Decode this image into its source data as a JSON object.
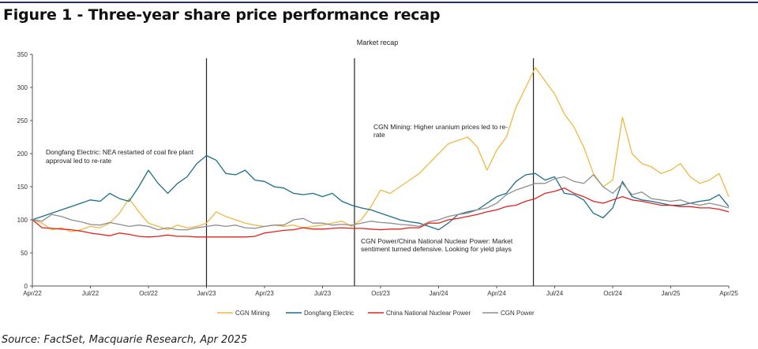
{
  "figure_title": "Figure 1 - Three-year share price performance recap",
  "source": "Source: FactSet, Macquarie Research, Apr 2025",
  "chart_data": {
    "type": "line",
    "title": "Market recap",
    "xlabel": "",
    "ylabel": "",
    "x_unit": "months since Apr/22",
    "xlim": [
      0,
      36
    ],
    "ylim": [
      0,
      350
    ],
    "yticks": [
      0,
      50,
      100,
      150,
      200,
      250,
      300,
      350
    ],
    "xtick_labels": [
      "Apr/22",
      "Jul/22",
      "Oct/22",
      "Jan/23",
      "Apr/23",
      "Jul/23",
      "Oct/23",
      "Jan/24",
      "Apr/24",
      "Jul/24",
      "Oct/24",
      "Jan/25",
      "Apr/25"
    ],
    "grid": false,
    "legend_position": "bottom",
    "x": [
      0,
      0.5,
      1,
      1.5,
      2,
      2.5,
      3,
      3.5,
      4,
      4.5,
      5,
      5.5,
      6,
      6.5,
      7,
      7.5,
      8,
      8.5,
      9,
      9.5,
      10,
      10.5,
      11,
      11.5,
      12,
      12.5,
      13,
      13.5,
      14,
      14.5,
      15,
      15.5,
      16,
      16.5,
      17,
      17.5,
      18,
      18.5,
      19,
      19.5,
      20,
      20.5,
      21,
      21.5,
      22,
      22.5,
      23,
      23.5,
      24,
      24.5,
      25,
      25.5,
      26,
      26.5,
      27,
      27.5,
      28,
      28.5,
      29,
      29.5,
      30,
      30.5,
      31,
      31.5,
      32,
      32.5,
      33,
      33.5,
      34,
      34.5,
      35,
      35.5,
      36
    ],
    "series": [
      {
        "name": "CGN Mining",
        "color": "#efb842",
        "values": [
          100,
          95,
          85,
          88,
          82,
          85,
          90,
          88,
          95,
          110,
          132,
          112,
          95,
          90,
          85,
          92,
          88,
          90,
          95,
          112,
          105,
          100,
          95,
          92,
          90,
          92,
          90,
          92,
          88,
          90,
          92,
          95,
          98,
          90,
          100,
          120,
          145,
          140,
          150,
          160,
          170,
          185,
          200,
          215,
          220,
          225,
          210,
          175,
          205,
          225,
          270,
          300,
          330,
          310,
          290,
          260,
          240,
          210,
          170,
          150,
          160,
          255,
          200,
          185,
          180,
          170,
          175,
          185,
          165,
          155,
          160,
          170,
          135
        ]
      },
      {
        "name": "Dongfang Electric",
        "color": "#1c6e8c",
        "values": [
          100,
          105,
          110,
          115,
          120,
          125,
          130,
          128,
          140,
          132,
          128,
          150,
          175,
          155,
          140,
          155,
          165,
          185,
          197,
          190,
          170,
          168,
          175,
          160,
          158,
          150,
          148,
          140,
          138,
          140,
          135,
          140,
          128,
          122,
          118,
          115,
          110,
          105,
          100,
          97,
          95,
          90,
          85,
          95,
          108,
          112,
          115,
          125,
          135,
          140,
          158,
          168,
          170,
          160,
          165,
          140,
          138,
          130,
          110,
          103,
          118,
          158,
          135,
          130,
          128,
          125,
          122,
          122,
          125,
          128,
          130,
          138,
          120
        ]
      },
      {
        "name": "China National Nuclear Power",
        "color": "#e0231e",
        "values": [
          100,
          88,
          87,
          86,
          85,
          83,
          80,
          78,
          76,
          80,
          78,
          75,
          74,
          75,
          77,
          75,
          75,
          74,
          74,
          74,
          74,
          74,
          74,
          75,
          80,
          82,
          84,
          85,
          88,
          86,
          86,
          87,
          88,
          87,
          87,
          86,
          85,
          86,
          86,
          88,
          88,
          95,
          95,
          100,
          102,
          105,
          108,
          112,
          115,
          120,
          122,
          128,
          132,
          140,
          143,
          148,
          140,
          135,
          128,
          125,
          130,
          135,
          130,
          128,
          125,
          122,
          122,
          120,
          120,
          118,
          118,
          116,
          112
        ]
      },
      {
        "name": "CGN Power",
        "color": "#8e8e8e",
        "values": [
          100,
          98,
          108,
          105,
          100,
          97,
          93,
          92,
          96,
          93,
          90,
          92,
          90,
          85,
          88,
          85,
          85,
          88,
          90,
          92,
          90,
          92,
          88,
          87,
          90,
          92,
          92,
          100,
          102,
          95,
          95,
          92,
          93,
          92,
          95,
          98,
          96,
          95,
          93,
          92,
          90,
          97,
          100,
          105,
          108,
          110,
          115,
          118,
          125,
          138,
          145,
          150,
          155,
          155,
          162,
          165,
          158,
          155,
          168,
          150,
          140,
          155,
          138,
          142,
          132,
          130,
          128,
          130,
          125,
          122,
          125,
          122,
          118
        ]
      }
    ],
    "event_lines": [
      9.0,
      16.65,
      25.9
    ],
    "annotations": [
      {
        "lines": [
          "Dongfang Electric: NEA restarted of coal fire plant",
          "approval led to re-rate"
        ]
      },
      {
        "lines": [
          "CGN Mining: Higher uranium prices led to re-",
          "rate"
        ]
      },
      {
        "lines": [
          "CGN Power/China National Nuclear Power: Market",
          "sentiment turned defensive. Looking for yield plays"
        ]
      }
    ]
  }
}
